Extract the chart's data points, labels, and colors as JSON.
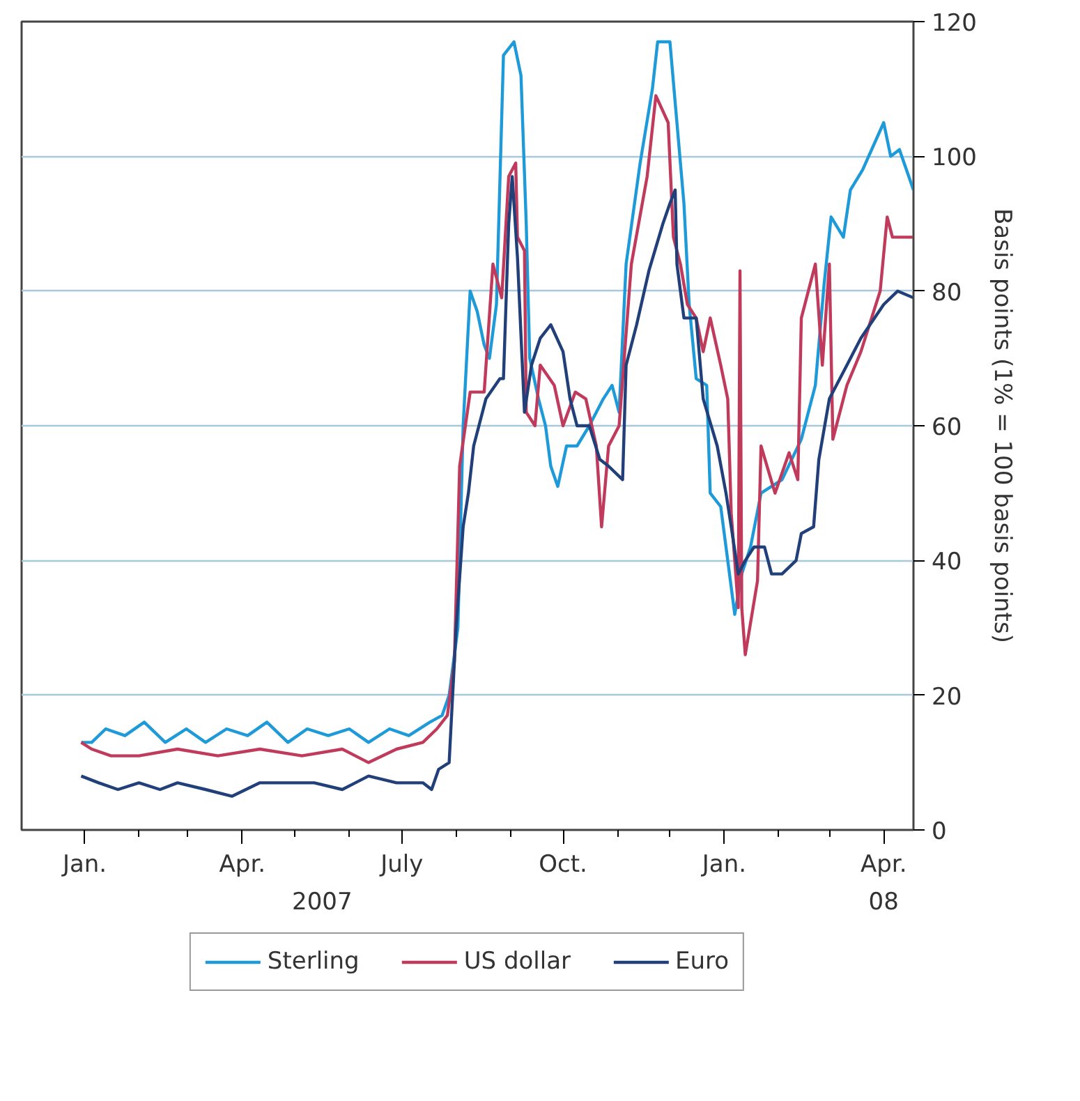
{
  "chart_data": {
    "type": "line",
    "ylabel": "Basis points (1% = 100 basis points)",
    "annotations": [
      "2007",
      "08"
    ],
    "xlim": [
      "2006-11-26",
      "2008-04-18"
    ],
    "ylim": [
      0,
      120
    ],
    "xticks": [
      {
        "value": "2007-01-01",
        "label": "Jan."
      },
      {
        "value": "2007-02-01",
        "label": null
      },
      {
        "value": "2007-03-01",
        "label": null
      },
      {
        "value": "2007-04-01",
        "label": "Apr."
      },
      {
        "value": "2007-05-01",
        "label": null
      },
      {
        "value": "2007-06-01",
        "label": null
      },
      {
        "value": "2007-07-01",
        "label": "July"
      },
      {
        "value": "2007-08-01",
        "label": null
      },
      {
        "value": "2007-09-01",
        "label": null
      },
      {
        "value": "2007-10-01",
        "label": "Oct."
      },
      {
        "value": "2007-11-01",
        "label": null
      },
      {
        "value": "2007-12-01",
        "label": null
      },
      {
        "value": "2008-01-01",
        "label": "Jan."
      },
      {
        "value": "2008-02-01",
        "label": null
      },
      {
        "value": "2008-03-01",
        "label": null
      },
      {
        "value": "2008-04-01",
        "label": "Apr."
      }
    ],
    "yticks": [
      0,
      20,
      40,
      60,
      80,
      100,
      120
    ],
    "grid": "y",
    "legend": "bottom",
    "tick_labels": "xy2",
    "series": [
      {
        "name": "Sterling",
        "color": "#1e9ad8",
        "x": [
          "2006-12-30",
          "2007-01-05",
          "2007-01-13",
          "2007-01-24",
          "2007-02-04",
          "2007-02-16",
          "2007-02-28",
          "2007-03-11",
          "2007-03-23",
          "2007-04-04",
          "2007-04-15",
          "2007-04-27",
          "2007-05-08",
          "2007-05-20",
          "2007-06-01",
          "2007-06-12",
          "2007-06-24",
          "2007-07-05",
          "2007-07-17",
          "2007-07-24",
          "2007-07-28",
          "2007-08-02",
          "2007-08-05",
          "2007-08-09",
          "2007-08-13",
          "2007-08-17",
          "2007-08-20",
          "2007-08-24",
          "2007-08-28",
          "2007-09-03",
          "2007-09-07",
          "2007-09-10",
          "2007-09-12",
          "2007-09-17",
          "2007-09-21",
          "2007-09-24",
          "2007-09-28",
          "2007-10-03",
          "2007-10-09",
          "2007-10-16",
          "2007-10-24",
          "2007-10-29",
          "2007-11-02",
          "2007-11-06",
          "2007-11-14",
          "2007-11-21",
          "2007-11-24",
          "2007-12-01",
          "2007-12-05",
          "2007-12-09",
          "2007-12-12",
          "2007-12-16",
          "2007-12-22",
          "2007-12-24",
          "2007-12-30",
          "2008-01-03",
          "2008-01-07",
          "2008-01-11",
          "2008-01-16",
          "2008-01-22",
          "2008-02-03",
          "2008-02-14",
          "2008-02-18",
          "2008-02-22",
          "2008-02-27",
          "2008-03-02",
          "2008-03-09",
          "2008-03-13",
          "2008-03-20",
          "2008-04-01",
          "2008-04-05",
          "2008-04-10",
          "2008-04-18"
        ],
        "values": [
          13,
          13,
          15,
          14,
          16,
          13,
          15,
          13,
          15,
          14,
          16,
          13,
          15,
          14,
          15,
          13,
          15,
          14,
          16,
          17,
          20,
          30,
          60,
          80,
          77,
          72,
          70,
          78,
          115,
          117,
          112,
          90,
          70,
          64,
          60,
          54,
          51,
          57,
          57,
          60,
          64,
          66,
          62,
          84,
          99,
          110,
          117,
          117,
          105,
          93,
          78,
          67,
          66,
          50,
          48,
          40,
          32,
          38,
          42,
          50,
          52,
          58,
          62,
          66,
          81,
          91,
          88,
          95,
          98,
          105,
          100,
          101,
          95
        ]
      },
      {
        "name": "US dollar",
        "color": "#c03a5c",
        "x": [
          "2006-12-30",
          "2007-01-05",
          "2007-01-16",
          "2007-02-01",
          "2007-02-23",
          "2007-03-18",
          "2007-04-11",
          "2007-05-05",
          "2007-05-28",
          "2007-06-12",
          "2007-06-28",
          "2007-07-13",
          "2007-07-21",
          "2007-07-27",
          "2007-07-31",
          "2007-08-03",
          "2007-08-09",
          "2007-08-17",
          "2007-08-22",
          "2007-08-27",
          "2007-08-31",
          "2007-09-04",
          "2007-09-05",
          "2007-09-09",
          "2007-09-10",
          "2007-09-15",
          "2007-09-18",
          "2007-09-26",
          "2007-10-01",
          "2007-10-08",
          "2007-10-14",
          "2007-10-20",
          "2007-10-23",
          "2007-10-27",
          "2007-11-02",
          "2007-11-09",
          "2007-11-18",
          "2007-11-23",
          "2007-11-30",
          "2007-12-03",
          "2007-12-07",
          "2007-12-11",
          "2007-12-16",
          "2007-12-20",
          "2007-12-24",
          "2007-12-30",
          "2008-01-03",
          "2008-01-05",
          "2008-01-09",
          "2008-01-10",
          "2008-01-11",
          "2008-01-13",
          "2008-01-20",
          "2008-01-22",
          "2008-01-30",
          "2008-02-07",
          "2008-02-12",
          "2008-02-14",
          "2008-02-22",
          "2008-02-26",
          "2008-03-01",
          "2008-03-03",
          "2008-03-11",
          "2008-03-19",
          "2008-03-30",
          "2008-04-03",
          "2008-04-06",
          "2008-04-18"
        ],
        "values": [
          13,
          12,
          11,
          11,
          12,
          11,
          12,
          11,
          12,
          10,
          12,
          13,
          15,
          17,
          25,
          54,
          65,
          65,
          84,
          79,
          97,
          99,
          88,
          86,
          62,
          60,
          69,
          66,
          60,
          65,
          64,
          57,
          45,
          57,
          60,
          84,
          97,
          109,
          105,
          88,
          84,
          78,
          76,
          71,
          76,
          69,
          64,
          47,
          33,
          83,
          33,
          26,
          37,
          57,
          50,
          56,
          52,
          76,
          84,
          69,
          84,
          58,
          66,
          71,
          80,
          91,
          88,
          88
        ]
      },
      {
        "name": "Euro",
        "color": "#213f78",
        "x": [
          "2006-12-30",
          "2007-01-09",
          "2007-01-20",
          "2007-02-01",
          "2007-02-13",
          "2007-02-23",
          "2007-03-11",
          "2007-03-26",
          "2007-04-11",
          "2007-04-27",
          "2007-05-12",
          "2007-05-28",
          "2007-06-12",
          "2007-06-28",
          "2007-07-13",
          "2007-07-18",
          "2007-07-22",
          "2007-07-28",
          "2007-08-01",
          "2007-08-05",
          "2007-08-08",
          "2007-08-11",
          "2007-08-18",
          "2007-08-26",
          "2007-08-28",
          "2007-08-31",
          "2007-09-02",
          "2007-09-05",
          "2007-09-09",
          "2007-09-13",
          "2007-09-18",
          "2007-09-24",
          "2007-10-01",
          "2007-10-05",
          "2007-10-09",
          "2007-10-16",
          "2007-10-22",
          "2007-10-27",
          "2007-11-04",
          "2007-11-06",
          "2007-11-12",
          "2007-11-19",
          "2007-11-27",
          "2007-12-01",
          "2007-12-04",
          "2007-12-05",
          "2007-12-09",
          "2007-12-16",
          "2007-12-20",
          "2007-12-28",
          "2008-01-02",
          "2008-01-05",
          "2008-01-09",
          "2008-01-13",
          "2008-01-18",
          "2008-01-24",
          "2008-01-28",
          "2008-02-03",
          "2008-02-11",
          "2008-02-14",
          "2008-02-21",
          "2008-02-24",
          "2008-03-01",
          "2008-03-09",
          "2008-03-19",
          "2008-04-01",
          "2008-04-09",
          "2008-04-18"
        ],
        "values": [
          8,
          7,
          6,
          7,
          6,
          7,
          6,
          5,
          7,
          7,
          7,
          6,
          8,
          7,
          7,
          6,
          9,
          10,
          30,
          45,
          50,
          57,
          64,
          67,
          67,
          90,
          97,
          85,
          62,
          69,
          73,
          75,
          71,
          64,
          60,
          60,
          55,
          54,
          52,
          69,
          75,
          83,
          90,
          93,
          95,
          84,
          76,
          76,
          64,
          57,
          50,
          45,
          38,
          40,
          42,
          42,
          38,
          38,
          40,
          44,
          45,
          55,
          64,
          68,
          73,
          78,
          80,
          79
        ]
      }
    ]
  }
}
